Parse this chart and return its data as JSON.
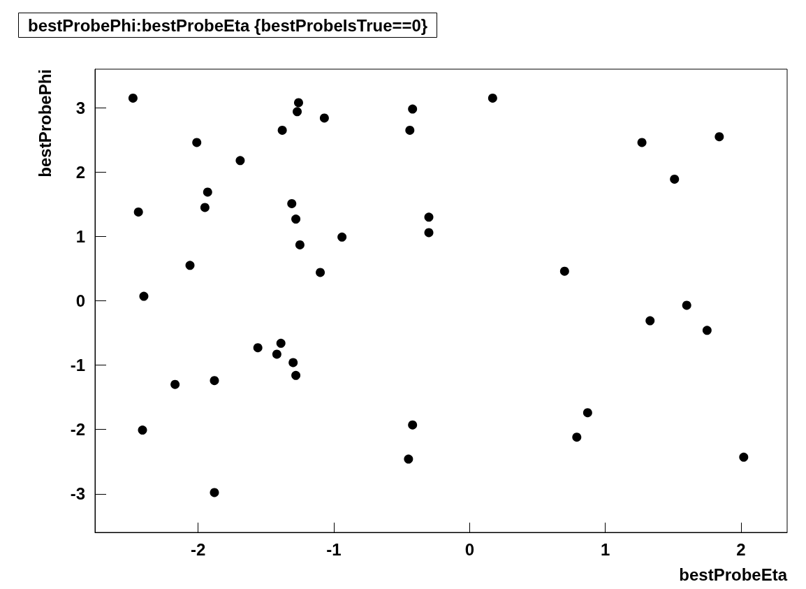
{
  "chart_data": {
    "type": "scatter",
    "title": "bestProbePhi:bestProbeEta {bestProbeIsTrue==0}",
    "xlabel": "bestProbeEta",
    "ylabel": "bestProbePhi",
    "xlim": [
      -2.76,
      2.34
    ],
    "ylim": [
      -3.6,
      3.6
    ],
    "xticks": [
      -2,
      -1,
      0,
      1,
      2
    ],
    "yticks": [
      -3,
      -2,
      -1,
      0,
      1,
      2,
      3
    ],
    "grid": false,
    "marker": "circle",
    "series": [
      {
        "color": "#000000",
        "x": [
          -2.48,
          -2.44,
          -2.4,
          -2.41,
          -2.01,
          -1.93,
          -1.95,
          -2.06,
          -2.17,
          -1.88,
          -1.88,
          -1.69,
          -1.56,
          -1.42,
          -1.39,
          -1.38,
          -1.26,
          -1.27,
          -1.31,
          -1.28,
          -1.25,
          -1.3,
          -1.28,
          -1.07,
          -1.1,
          -0.94,
          -0.42,
          -0.44,
          -0.3,
          -0.3,
          -0.42,
          -0.45,
          0.17,
          0.7,
          0.79,
          0.87,
          1.27,
          1.33,
          1.51,
          1.6,
          1.75,
          1.84,
          2.02
        ],
        "values": [
          3.15,
          1.38,
          0.07,
          -2.01,
          2.46,
          1.69,
          1.45,
          0.55,
          -1.3,
          -1.24,
          -2.98,
          2.18,
          -0.73,
          -0.83,
          -0.66,
          2.65,
          3.08,
          2.94,
          1.51,
          1.27,
          0.87,
          -0.96,
          -1.16,
          2.84,
          0.44,
          0.99,
          2.98,
          2.65,
          1.3,
          1.06,
          -1.93,
          -2.46,
          3.15,
          0.46,
          -2.12,
          -1.74,
          2.46,
          -0.31,
          1.89,
          -0.07,
          -0.46,
          2.55,
          -2.43
        ]
      }
    ]
  }
}
